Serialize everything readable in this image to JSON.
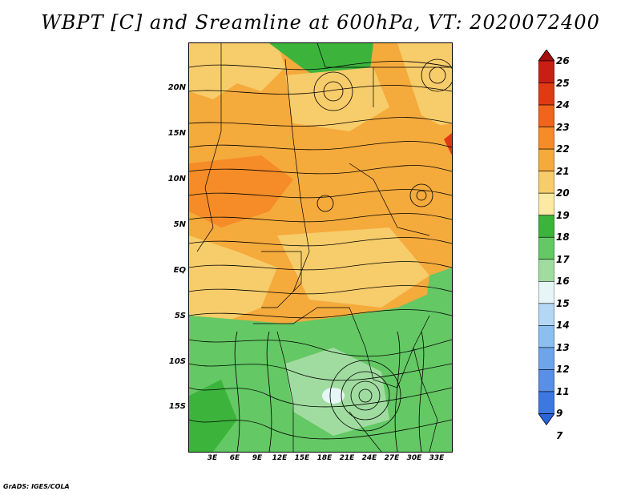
{
  "title": "WBPT [C] and Sreamline at 600hPa, VT: 2020072400",
  "credit": "GrADS: IGES/COLA",
  "lat_labels": [
    "20N",
    "15N",
    "10N",
    "5N",
    "EQ",
    "5S",
    "10S",
    "15S"
  ],
  "lon_labels": [
    "3E",
    "6E",
    "9E",
    "12E",
    "15E",
    "18E",
    "21E",
    "24E",
    "27E",
    "30E",
    "33E"
  ],
  "colorbar": {
    "labels": [
      "26",
      "25",
      "24",
      "23",
      "22",
      "21",
      "20",
      "19",
      "18",
      "17",
      "16",
      "15",
      "14",
      "13",
      "12",
      "11",
      "9",
      "7"
    ],
    "colors": [
      "#a50f0f",
      "#c81e14",
      "#e03a14",
      "#f0641e",
      "#f58c28",
      "#f5aa3c",
      "#f7cc6a",
      "#fbe9a4",
      "#3cb43c",
      "#64c864",
      "#a0dca0",
      "#e6f5f5",
      "#b4d7f5",
      "#8cbef0",
      "#6ea5ea",
      "#5a8fe6",
      "#3c78e0",
      "#2864dc"
    ]
  }
}
